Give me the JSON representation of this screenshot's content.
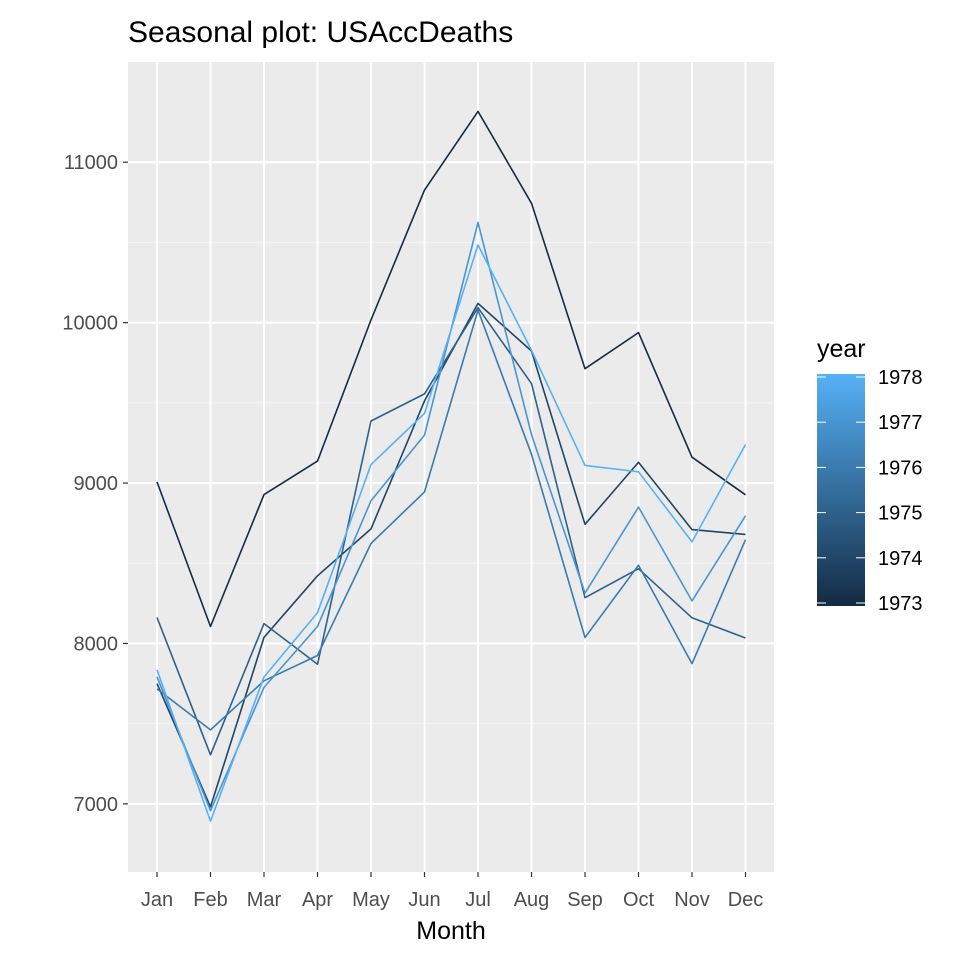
{
  "chart_data": {
    "type": "line",
    "title": "Seasonal plot: USAccDeaths",
    "xlabel": "Month",
    "ylabel": "",
    "categories": [
      "Jan",
      "Feb",
      "Mar",
      "Apr",
      "May",
      "Jun",
      "Jul",
      "Aug",
      "Sep",
      "Oct",
      "Nov",
      "Dec"
    ],
    "ylim": [
      6700,
      11500
    ],
    "yticks": [
      7000,
      8000,
      9000,
      10000,
      11000
    ],
    "ytick_labels": [
      "7000",
      "8000",
      "9000",
      "10000",
      "11000"
    ],
    "grid": true,
    "legend": {
      "title": "year",
      "position": "right",
      "labels": [
        "1978",
        "1977",
        "1976",
        "1975",
        "1974",
        "1973"
      ],
      "range": [
        1973,
        1978
      ],
      "color_low": "#132B43",
      "color_high": "#56B1F7"
    },
    "series": [
      {
        "name": "1973",
        "values": [
          9007,
          8106,
          8928,
          9137,
          10017,
          10826,
          11317,
          10744,
          9713,
          9938,
          9161,
          8927
        ]
      },
      {
        "name": "1974",
        "values": [
          7750,
          6981,
          8038,
          8422,
          8714,
          9512,
          10120,
          9823,
          8743,
          9129,
          8710,
          8680
        ]
      },
      {
        "name": "1975",
        "values": [
          8162,
          7306,
          8124,
          7870,
          9387,
          9556,
          10093,
          9620,
          8285,
          8466,
          8160,
          8034
        ]
      },
      {
        "name": "1976",
        "values": [
          7717,
          7461,
          7767,
          7925,
          8623,
          8945,
          10078,
          9179,
          8037,
          8488,
          7874,
          8647
        ]
      },
      {
        "name": "1977",
        "values": [
          7792,
          6957,
          7726,
          8106,
          8890,
          9299,
          10625,
          9302,
          8314,
          8850,
          8265,
          8796
        ]
      },
      {
        "name": "1978",
        "values": [
          7836,
          6892,
          7791,
          8192,
          9115,
          9434,
          10484,
          9827,
          9110,
          9070,
          8633,
          9240
        ]
      }
    ]
  }
}
